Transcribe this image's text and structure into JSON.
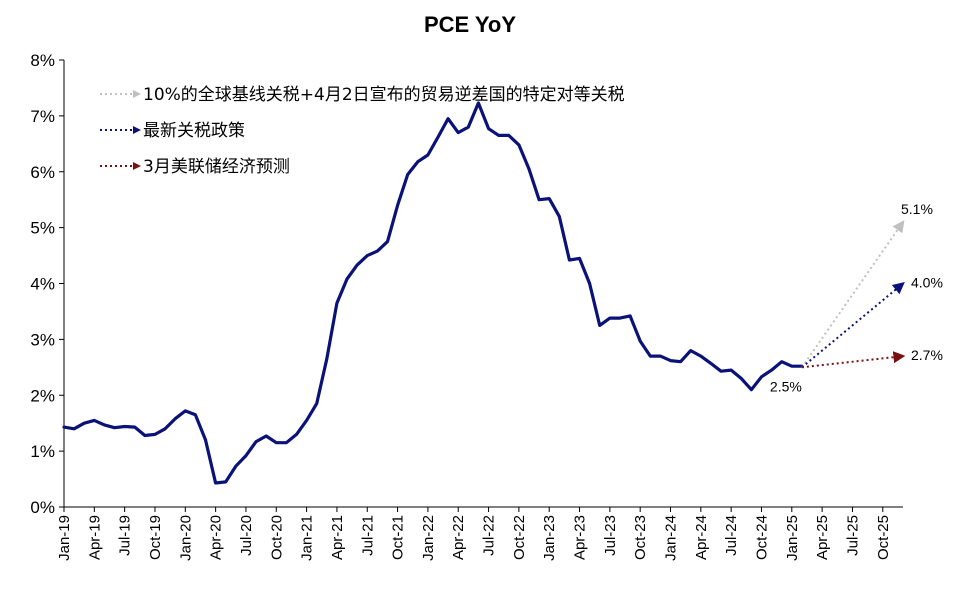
{
  "chart_data": {
    "type": "line",
    "title": "PCE YoY",
    "xlabel": "",
    "ylabel": "",
    "ylim": [
      0,
      8
    ],
    "yticks": [
      "0%",
      "1%",
      "2%",
      "3%",
      "4%",
      "5%",
      "6%",
      "7%",
      "8%"
    ],
    "xlim": [
      "Jan-19",
      "Dec-25"
    ],
    "xticks": [
      "Jan-19",
      "Apr-19",
      "Jul-19",
      "Oct-19",
      "Jan-20",
      "Apr-20",
      "Jul-20",
      "Oct-20",
      "Jan-21",
      "Apr-21",
      "Jul-21",
      "Oct-21",
      "Jan-22",
      "Apr-22",
      "Jul-22",
      "Oct-22",
      "Jan-23",
      "Apr-23",
      "Jul-23",
      "Oct-23",
      "Jan-24",
      "Apr-24",
      "Jul-24",
      "Oct-24",
      "Jan-25",
      "Apr-25",
      "Jul-25",
      "Oct-25"
    ],
    "grid": false,
    "legend_position": "top-left",
    "series": [
      {
        "name": "PCE YoY",
        "color": "#0a127a",
        "style": "solid",
        "start": "Jan-19",
        "values": [
          1.43,
          1.4,
          1.5,
          1.55,
          1.47,
          1.42,
          1.44,
          1.43,
          1.28,
          1.3,
          1.4,
          1.58,
          1.72,
          1.65,
          1.2,
          0.43,
          0.45,
          0.73,
          0.92,
          1.17,
          1.27,
          1.15,
          1.15,
          1.3,
          1.55,
          1.85,
          2.65,
          3.65,
          4.08,
          4.33,
          4.5,
          4.58,
          4.75,
          5.4,
          5.95,
          6.18,
          6.3,
          6.62,
          6.95,
          6.7,
          6.8,
          7.23,
          6.77,
          6.65,
          6.65,
          6.48,
          6.05,
          5.5,
          5.52,
          5.2,
          4.42,
          4.45,
          4.0,
          3.25,
          3.38,
          3.38,
          3.42,
          2.97,
          2.7,
          2.7,
          2.62,
          2.6,
          2.8,
          2.7,
          2.57,
          2.43,
          2.45,
          2.3,
          2.1,
          2.33,
          2.45,
          2.6,
          2.52,
          2.52
        ]
      },
      {
        "name": "10%的全球基线关税+4月2日宣布的贸易逆差国的特定对等关税",
        "color": "#c0c0c0",
        "style": "dotted",
        "points": [
          {
            "x": "Feb-25",
            "y": 2.5
          },
          {
            "x": "Dec-25",
            "y": 5.1
          }
        ],
        "end_label": "5.1%"
      },
      {
        "name": "最新关税政策",
        "color": "#0a127a",
        "style": "dotted",
        "points": [
          {
            "x": "Feb-25",
            "y": 2.5
          },
          {
            "x": "Dec-25",
            "y": 4.0
          }
        ],
        "end_label": "4.0%"
      },
      {
        "name": "3月美联储经济预测",
        "color": "#7a1010",
        "style": "dotted",
        "points": [
          {
            "x": "Feb-25",
            "y": 2.5
          },
          {
            "x": "Dec-25",
            "y": 2.7
          }
        ],
        "end_label": "2.7%"
      }
    ],
    "annotations": [
      {
        "text": "2.5%",
        "x": "Feb-25",
        "y": 2.5
      }
    ]
  }
}
